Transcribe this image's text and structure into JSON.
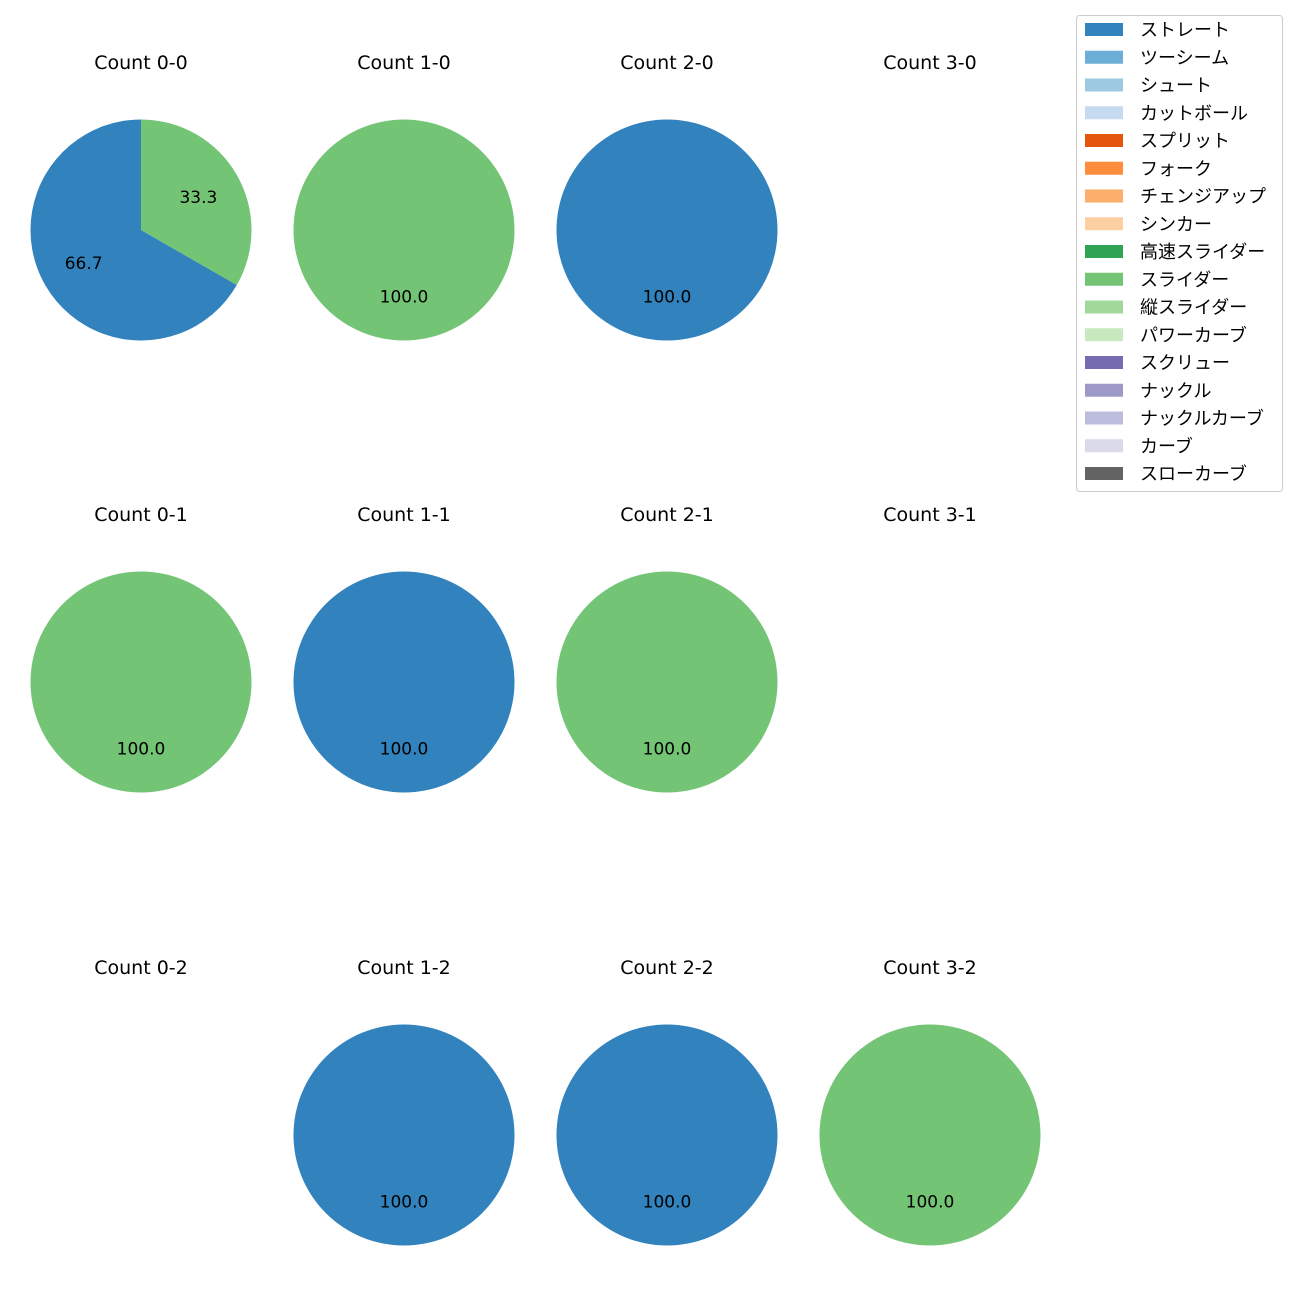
{
  "chart_data": {
    "type": "pie",
    "layout": {
      "rows": 3,
      "cols": 4
    },
    "legend": {
      "placement": "top-right",
      "entries": [
        {
          "label": "ストレート",
          "color": "#3182bd"
        },
        {
          "label": "ツーシーム",
          "color": "#6baed6"
        },
        {
          "label": "シュート",
          "color": "#9ecae1"
        },
        {
          "label": "カットボール",
          "color": "#c6dbef"
        },
        {
          "label": "スプリット",
          "color": "#e6550d"
        },
        {
          "label": "フォーク",
          "color": "#fd8d3c"
        },
        {
          "label": "チェンジアップ",
          "color": "#fdae6b"
        },
        {
          "label": "シンカー",
          "color": "#fdd0a2"
        },
        {
          "label": "高速スライダー",
          "color": "#31a354"
        },
        {
          "label": "スライダー",
          "color": "#74c476"
        },
        {
          "label": "縦スライダー",
          "color": "#a1d99b"
        },
        {
          "label": "パワーカーブ",
          "color": "#c7e9c0"
        },
        {
          "label": "スクリュー",
          "color": "#756bb1"
        },
        {
          "label": "ナックル",
          "color": "#9e9ac8"
        },
        {
          "label": "ナックルカーブ",
          "color": "#bcbddc"
        },
        {
          "label": "カーブ",
          "color": "#dadaeb"
        },
        {
          "label": "スローカーブ",
          "color": "#636363"
        }
      ]
    },
    "charts": [
      {
        "title": "Count 0-0",
        "row": 0,
        "col": 0,
        "slices": [
          {
            "pitch": "ストレート",
            "value": 66.7,
            "label": "66.7"
          },
          {
            "pitch": "スライダー",
            "value": 33.3,
            "label": "33.3"
          }
        ]
      },
      {
        "title": "Count 1-0",
        "row": 0,
        "col": 1,
        "slices": [
          {
            "pitch": "スライダー",
            "value": 100.0,
            "label": "100.0"
          }
        ]
      },
      {
        "title": "Count 2-0",
        "row": 0,
        "col": 2,
        "slices": [
          {
            "pitch": "ストレート",
            "value": 100.0,
            "label": "100.0"
          }
        ]
      },
      {
        "title": "Count 3-0",
        "row": 0,
        "col": 3,
        "slices": []
      },
      {
        "title": "Count 0-1",
        "row": 1,
        "col": 0,
        "slices": [
          {
            "pitch": "スライダー",
            "value": 100.0,
            "label": "100.0"
          }
        ]
      },
      {
        "title": "Count 1-1",
        "row": 1,
        "col": 1,
        "slices": [
          {
            "pitch": "ストレート",
            "value": 100.0,
            "label": "100.0"
          }
        ]
      },
      {
        "title": "Count 2-1",
        "row": 1,
        "col": 2,
        "slices": [
          {
            "pitch": "スライダー",
            "value": 100.0,
            "label": "100.0"
          }
        ]
      },
      {
        "title": "Count 3-1",
        "row": 1,
        "col": 3,
        "slices": []
      },
      {
        "title": "Count 0-2",
        "row": 2,
        "col": 0,
        "slices": []
      },
      {
        "title": "Count 1-2",
        "row": 2,
        "col": 1,
        "slices": [
          {
            "pitch": "ストレート",
            "value": 100.0,
            "label": "100.0"
          }
        ]
      },
      {
        "title": "Count 2-2",
        "row": 2,
        "col": 2,
        "slices": [
          {
            "pitch": "ストレート",
            "value": 100.0,
            "label": "100.0"
          }
        ]
      },
      {
        "title": "Count 3-2",
        "row": 2,
        "col": 3,
        "slices": [
          {
            "pitch": "スライダー",
            "value": 100.0,
            "label": "100.0"
          }
        ]
      }
    ]
  }
}
